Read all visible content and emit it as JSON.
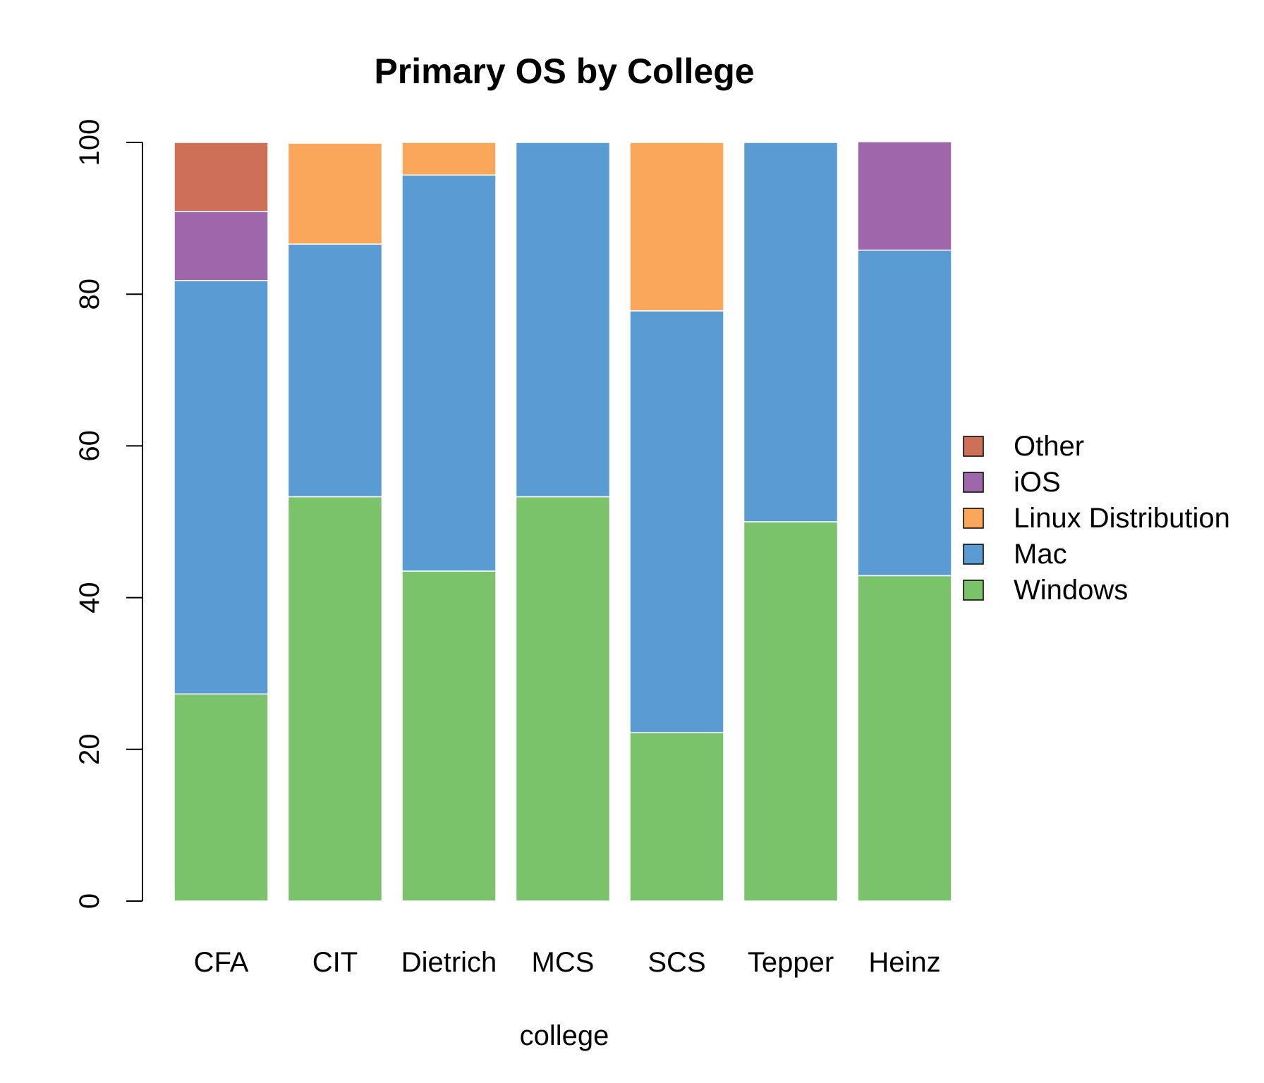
{
  "chart_data": {
    "type": "bar",
    "stacked": true,
    "title": "Primary OS by College",
    "xlabel": "college",
    "ylabel": "",
    "ylim": [
      0,
      100
    ],
    "yticks": [
      0,
      20,
      40,
      60,
      80,
      100
    ],
    "categories": [
      "CFA",
      "CIT",
      "Dietrich",
      "MCS",
      "SCS",
      "Tepper",
      "Heinz"
    ],
    "series": [
      {
        "name": "Windows",
        "color": "#7AC36A",
        "values": [
          27.3,
          53.3,
          43.5,
          53.3,
          22.2,
          50.0,
          42.9
        ]
      },
      {
        "name": "Mac",
        "color": "#5A9BD4",
        "values": [
          54.5,
          33.3,
          52.2,
          46.7,
          55.6,
          50.0,
          42.9
        ]
      },
      {
        "name": "Linux Distribution",
        "color": "#FAA75B",
        "values": [
          0,
          13.3,
          4.3,
          0,
          22.2,
          0,
          0
        ]
      },
      {
        "name": "iOS",
        "color": "#9E67AB",
        "values": [
          9.1,
          0,
          0,
          0,
          0,
          0,
          14.3
        ]
      },
      {
        "name": "Other",
        "color": "#CE7058",
        "values": [
          9.1,
          0,
          0,
          0,
          0,
          0,
          0
        ]
      }
    ],
    "legend": {
      "position": "right",
      "order": [
        "Other",
        "iOS",
        "Linux Distribution",
        "Mac",
        "Windows"
      ]
    },
    "grid": false
  }
}
